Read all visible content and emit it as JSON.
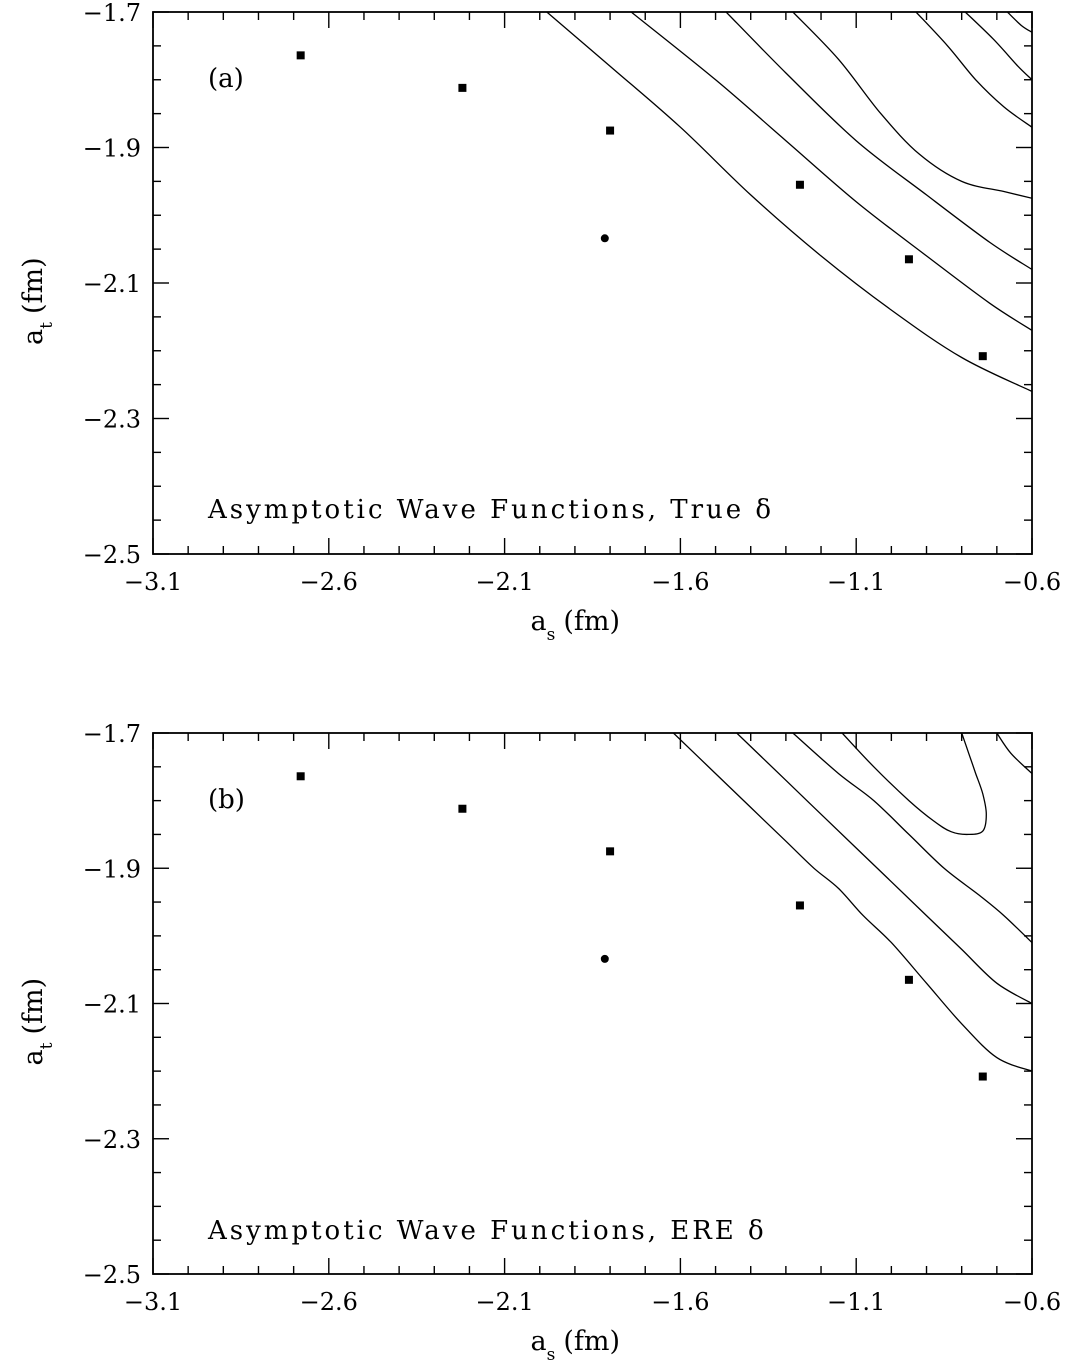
{
  "chart_data": [
    {
      "type": "scatter",
      "panel_label": "(a)",
      "annotation": "Asymptotic Wave Functions, True δ",
      "xlabel": {
        "main": "a",
        "sub": "s",
        "unit": "(fm)"
      },
      "ylabel": {
        "main": "a",
        "sub": "t",
        "unit": "(fm)"
      },
      "xlim": [
        -3.1,
        -0.6
      ],
      "ylim": [
        -2.5,
        -1.7
      ],
      "xticks": [
        -3.1,
        -2.6,
        -2.1,
        -1.6,
        -1.1,
        -0.6
      ],
      "xtick_labels": [
        "−3.1",
        "−2.6",
        "−2.1",
        "−1.6",
        "−1.1",
        "−0.6"
      ],
      "yticks": [
        -2.5,
        -2.3,
        -2.1,
        -1.9,
        -1.7
      ],
      "ytick_labels": [
        "−2.5",
        "−2.3",
        "−2.1",
        "−1.9",
        "−1.7"
      ],
      "grid": false,
      "series": [
        {
          "marker": "square",
          "points": [
            [
              -2.68,
              -1.764
            ],
            [
              -2.22,
              -1.812
            ],
            [
              -1.8,
              -1.875
            ],
            [
              -1.26,
              -1.955
            ],
            [
              -0.95,
              -2.065
            ],
            [
              -0.74,
              -2.208
            ]
          ]
        },
        {
          "marker": "circle",
          "points": [
            [
              -1.815,
              -2.034
            ]
          ]
        }
      ],
      "contours": [
        [
          [
            -1.98,
            -1.7
          ],
          [
            -1.8,
            -1.78
          ],
          [
            -1.6,
            -1.87
          ],
          [
            -1.4,
            -1.97
          ],
          [
            -1.2,
            -2.06
          ],
          [
            -1.0,
            -2.14
          ],
          [
            -0.8,
            -2.21
          ],
          [
            -0.6,
            -2.26
          ]
        ],
        [
          [
            -1.74,
            -1.7
          ],
          [
            -1.5,
            -1.8
          ],
          [
            -1.3,
            -1.89
          ],
          [
            -1.1,
            -1.98
          ],
          [
            -0.9,
            -2.06
          ],
          [
            -0.72,
            -2.13
          ],
          [
            -0.6,
            -2.17
          ]
        ],
        [
          [
            -1.47,
            -1.7
          ],
          [
            -1.3,
            -1.79
          ],
          [
            -1.1,
            -1.89
          ],
          [
            -0.9,
            -1.97
          ],
          [
            -0.72,
            -2.04
          ],
          [
            -0.6,
            -2.08
          ]
        ],
        [
          [
            -1.28,
            -1.7
          ],
          [
            -1.15,
            -1.77
          ],
          [
            -1.03,
            -1.85
          ],
          [
            -0.92,
            -1.91
          ],
          [
            -0.8,
            -1.95
          ],
          [
            -0.68,
            -1.965
          ],
          [
            -0.6,
            -1.975
          ]
        ],
        [
          [
            -0.93,
            -1.7
          ],
          [
            -0.84,
            -1.75
          ],
          [
            -0.76,
            -1.8
          ],
          [
            -0.68,
            -1.84
          ],
          [
            -0.6,
            -1.87
          ]
        ],
        [
          [
            -0.79,
            -1.7
          ],
          [
            -0.71,
            -1.74
          ],
          [
            -0.64,
            -1.78
          ],
          [
            -0.6,
            -1.8
          ]
        ],
        [
          [
            -0.67,
            -1.7
          ],
          [
            -0.63,
            -1.72
          ],
          [
            -0.6,
            -1.73
          ]
        ]
      ]
    },
    {
      "type": "scatter",
      "panel_label": "(b)",
      "annotation": "Asymptotic Wave Functions, ERE δ",
      "xlabel": {
        "main": "a",
        "sub": "s",
        "unit": "(fm)"
      },
      "ylabel": {
        "main": "a",
        "sub": "t",
        "unit": "(fm)"
      },
      "xlim": [
        -3.1,
        -0.6
      ],
      "ylim": [
        -2.5,
        -1.7
      ],
      "xticks": [
        -3.1,
        -2.6,
        -2.1,
        -1.6,
        -1.1,
        -0.6
      ],
      "xtick_labels": [
        "−3.1",
        "−2.6",
        "−2.1",
        "−1.6",
        "−1.1",
        "−0.6"
      ],
      "yticks": [
        -2.5,
        -2.3,
        -2.1,
        -1.9,
        -1.7
      ],
      "ytick_labels": [
        "−2.5",
        "−2.3",
        "−2.1",
        "−1.9",
        "−1.7"
      ],
      "grid": false,
      "series": [
        {
          "marker": "square",
          "points": [
            [
              -2.68,
              -1.764
            ],
            [
              -2.22,
              -1.812
            ],
            [
              -1.8,
              -1.875
            ],
            [
              -1.26,
              -1.955
            ],
            [
              -0.95,
              -2.065
            ],
            [
              -0.74,
              -2.208
            ]
          ]
        },
        {
          "marker": "circle",
          "points": [
            [
              -1.815,
              -2.034
            ]
          ]
        }
      ],
      "contours": [
        [
          [
            -1.62,
            -1.7
          ],
          [
            -1.5,
            -1.76
          ],
          [
            -1.4,
            -1.81
          ],
          [
            -1.3,
            -1.86
          ],
          [
            -1.22,
            -1.9
          ],
          [
            -1.15,
            -1.93
          ],
          [
            -1.08,
            -1.97
          ],
          [
            -1.0,
            -2.01
          ],
          [
            -0.9,
            -2.07
          ],
          [
            -0.8,
            -2.13
          ],
          [
            -0.7,
            -2.18
          ],
          [
            -0.6,
            -2.2
          ]
        ],
        [
          [
            -1.44,
            -1.7
          ],
          [
            -1.3,
            -1.77
          ],
          [
            -1.2,
            -1.82
          ],
          [
            -1.1,
            -1.87
          ],
          [
            -1.0,
            -1.92
          ],
          [
            -0.9,
            -1.97
          ],
          [
            -0.8,
            -2.02
          ],
          [
            -0.7,
            -2.07
          ],
          [
            -0.6,
            -2.1
          ]
        ],
        [
          [
            -1.28,
            -1.7
          ],
          [
            -1.15,
            -1.76
          ],
          [
            -1.05,
            -1.8
          ],
          [
            -0.95,
            -1.85
          ],
          [
            -0.85,
            -1.9
          ],
          [
            -0.75,
            -1.94
          ],
          [
            -0.68,
            -1.97
          ],
          [
            -0.6,
            -2.01
          ]
        ],
        [
          [
            -1.14,
            -1.7
          ],
          [
            -1.05,
            -1.75
          ],
          [
            -0.95,
            -1.8
          ],
          [
            -0.88,
            -1.83
          ],
          [
            -0.83,
            -1.846
          ],
          [
            -0.78,
            -1.85
          ],
          [
            -0.74,
            -1.845
          ],
          [
            -0.73,
            -1.82
          ],
          [
            -0.74,
            -1.79
          ],
          [
            -0.76,
            -1.76
          ],
          [
            -0.78,
            -1.73
          ],
          [
            -0.8,
            -1.7
          ]
        ],
        [
          [
            -0.7,
            -1.7
          ],
          [
            -0.66,
            -1.73
          ],
          [
            -0.6,
            -1.76
          ]
        ]
      ]
    }
  ]
}
